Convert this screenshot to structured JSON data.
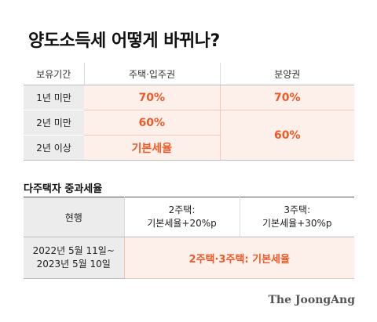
{
  "title": "양도소득세 어떻게 바뀌나?",
  "table1": {
    "headers": [
      "보유기간",
      "주택·입주권",
      "분양권"
    ],
    "rows": [
      {
        "label": "1년 미만",
        "housing": "70%",
        "presale": "70%"
      },
      {
        "label": "2년 미만",
        "housing": "60%",
        "presale": "60%"
      },
      {
        "label": "2년 이상",
        "housing": "기본세율"
      }
    ]
  },
  "subtitle": "다주택자 중과세율",
  "table2": {
    "header_label": "현행",
    "col1_lines": [
      "2주택:",
      "기본세율+20%p"
    ],
    "col2_lines": [
      "3주택:",
      "기본세율+30%p"
    ],
    "row_label_lines": [
      "2022년 5월 11일~",
      "2023년 5월 10일"
    ],
    "row_value": "2주택·3주택: 기본세율"
  },
  "brand": "The JoongAng",
  "colors": {
    "accent": "#f05a28",
    "accent_bg": "#fdf0ea",
    "label_bg": "#ececec"
  }
}
